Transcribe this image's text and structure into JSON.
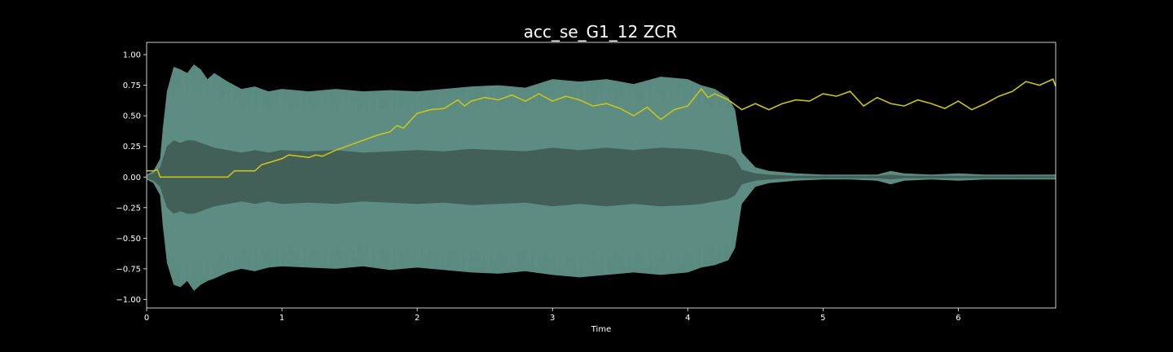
{
  "chart_data": {
    "type": "line",
    "title": "acc_se_G1_12 ZCR",
    "xlabel": "Time",
    "ylabel": "",
    "xlim": [
      0,
      6.72
    ],
    "ylim": [
      -1.07,
      1.1
    ],
    "x_ticks": [
      0,
      1,
      2,
      3,
      4,
      5,
      6
    ],
    "x_tick_labels": [
      "0",
      "1",
      "2",
      "3",
      "4",
      "5",
      "6"
    ],
    "y_ticks": [
      -1.0,
      -0.75,
      -0.5,
      -0.25,
      0.0,
      0.25,
      0.5,
      0.75,
      1.0
    ],
    "y_tick_labels": [
      "−1.00",
      "−0.75",
      "−0.50",
      "−0.25",
      "0.00",
      "0.25",
      "0.50",
      "0.75",
      "1.00"
    ],
    "grid": false,
    "colors": {
      "background": "#000000",
      "axes": "#ffffff",
      "waveform_outer": "#5b8a80",
      "waveform_inner": "#3b544d",
      "zcr_line": "#c8c41a"
    },
    "series": [
      {
        "kind": "waveform-envelope",
        "t": [
          0.0,
          0.05,
          0.1,
          0.12,
          0.15,
          0.2,
          0.25,
          0.3,
          0.35,
          0.4,
          0.45,
          0.5,
          0.6,
          0.7,
          0.8,
          0.9,
          1.0,
          1.2,
          1.4,
          1.6,
          1.8,
          2.0,
          2.2,
          2.4,
          2.6,
          2.8,
          3.0,
          3.2,
          3.4,
          3.6,
          3.8,
          4.0,
          4.1,
          4.2,
          4.3,
          4.35,
          4.4,
          4.5,
          4.6,
          4.8,
          5.0,
          5.2,
          5.4,
          5.5,
          5.6,
          5.8,
          6.0,
          6.2,
          6.4,
          6.6,
          6.72
        ],
        "upper": [
          0.02,
          0.05,
          0.15,
          0.4,
          0.7,
          0.9,
          0.88,
          0.85,
          0.92,
          0.88,
          0.8,
          0.85,
          0.78,
          0.72,
          0.74,
          0.7,
          0.72,
          0.7,
          0.72,
          0.7,
          0.71,
          0.7,
          0.72,
          0.74,
          0.75,
          0.73,
          0.8,
          0.78,
          0.8,
          0.76,
          0.82,
          0.8,
          0.75,
          0.72,
          0.65,
          0.55,
          0.2,
          0.08,
          0.05,
          0.03,
          0.02,
          0.02,
          0.02,
          0.05,
          0.03,
          0.02,
          0.03,
          0.02,
          0.02,
          0.02,
          0.02
        ],
        "lower": [
          -0.02,
          -0.05,
          -0.15,
          -0.4,
          -0.7,
          -0.88,
          -0.9,
          -0.85,
          -0.93,
          -0.88,
          -0.85,
          -0.83,
          -0.78,
          -0.75,
          -0.77,
          -0.74,
          -0.73,
          -0.74,
          -0.75,
          -0.73,
          -0.76,
          -0.74,
          -0.76,
          -0.78,
          -0.79,
          -0.77,
          -0.8,
          -0.82,
          -0.8,
          -0.78,
          -0.8,
          -0.78,
          -0.74,
          -0.72,
          -0.68,
          -0.58,
          -0.22,
          -0.08,
          -0.05,
          -0.03,
          -0.02,
          -0.02,
          -0.03,
          -0.06,
          -0.03,
          -0.02,
          -0.03,
          -0.02,
          -0.02,
          -0.02,
          -0.02
        ],
        "inner": [
          0.01,
          0.03,
          0.08,
          0.15,
          0.25,
          0.3,
          0.28,
          0.3,
          0.3,
          0.28,
          0.26,
          0.24,
          0.22,
          0.2,
          0.22,
          0.2,
          0.22,
          0.21,
          0.22,
          0.2,
          0.21,
          0.22,
          0.21,
          0.23,
          0.22,
          0.21,
          0.24,
          0.22,
          0.24,
          0.22,
          0.24,
          0.23,
          0.22,
          0.2,
          0.18,
          0.15,
          0.06,
          0.03,
          0.02,
          0.01,
          0.01,
          0.01,
          0.01,
          0.02,
          0.01,
          0.01,
          0.01,
          0.01,
          0.01,
          0.01,
          0.01
        ]
      },
      {
        "kind": "zcr-line",
        "x": [
          0.0,
          0.05,
          0.08,
          0.1,
          0.6,
          0.65,
          0.8,
          0.85,
          1.0,
          1.05,
          1.2,
          1.25,
          1.3,
          1.4,
          1.5,
          1.6,
          1.7,
          1.8,
          1.85,
          1.9,
          1.95,
          2.0,
          2.1,
          2.2,
          2.3,
          2.35,
          2.4,
          2.5,
          2.6,
          2.7,
          2.8,
          2.9,
          3.0,
          3.1,
          3.2,
          3.3,
          3.4,
          3.5,
          3.6,
          3.7,
          3.8,
          3.9,
          4.0,
          4.1,
          4.15,
          4.2,
          4.3,
          4.4,
          4.5,
          4.6,
          4.7,
          4.8,
          4.9,
          5.0,
          5.1,
          5.2,
          5.3,
          5.4,
          5.5,
          5.6,
          5.7,
          5.8,
          5.9,
          6.0,
          6.1,
          6.2,
          6.3,
          6.4,
          6.5,
          6.6,
          6.7,
          6.72
        ],
        "y": [
          0.05,
          0.05,
          0.06,
          0.0,
          0.0,
          0.05,
          0.05,
          0.1,
          0.15,
          0.18,
          0.16,
          0.18,
          0.17,
          0.22,
          0.26,
          0.3,
          0.34,
          0.37,
          0.42,
          0.4,
          0.46,
          0.52,
          0.55,
          0.56,
          0.63,
          0.58,
          0.62,
          0.65,
          0.63,
          0.67,
          0.62,
          0.68,
          0.62,
          0.66,
          0.63,
          0.58,
          0.6,
          0.56,
          0.5,
          0.57,
          0.47,
          0.55,
          0.58,
          0.72,
          0.65,
          0.68,
          0.63,
          0.55,
          0.6,
          0.55,
          0.6,
          0.63,
          0.62,
          0.68,
          0.66,
          0.7,
          0.58,
          0.65,
          0.6,
          0.58,
          0.63,
          0.6,
          0.56,
          0.62,
          0.55,
          0.6,
          0.66,
          0.7,
          0.78,
          0.75,
          0.8,
          0.74
        ]
      }
    ]
  }
}
